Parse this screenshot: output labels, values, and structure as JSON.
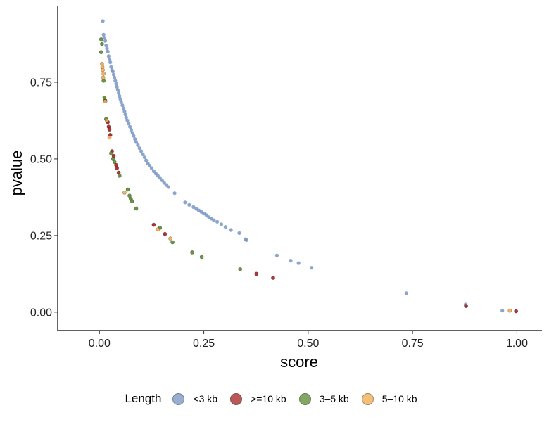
{
  "chart_data": {
    "type": "scatter",
    "title": "",
    "xlabel": "score",
    "ylabel": "pvalue",
    "xlim": [
      -0.1,
      1.06
    ],
    "ylim": [
      -0.06,
      1.0
    ],
    "x_ticks": [
      0,
      0.25,
      0.5,
      0.75,
      1.0
    ],
    "x_tick_labels": [
      "0.00",
      "0.25",
      "0.50",
      "0.75",
      "1.00"
    ],
    "y_ticks": [
      0,
      0.25,
      0.5,
      0.75
    ],
    "y_tick_labels": [
      "0.00",
      "0.25",
      "0.50",
      "0.75"
    ],
    "grid": false,
    "legend": {
      "title": "Length",
      "position": "bottom"
    },
    "series": [
      {
        "name": "<3 kb",
        "color": "#7895c4",
        "points": [
          [
            0.008,
            0.95
          ],
          [
            0.01,
            0.905
          ],
          [
            0.012,
            0.895
          ],
          [
            0.014,
            0.885
          ],
          [
            0.016,
            0.87
          ],
          [
            0.018,
            0.86
          ],
          [
            0.02,
            0.85
          ],
          [
            0.022,
            0.835
          ],
          [
            0.024,
            0.825
          ],
          [
            0.026,
            0.815
          ],
          [
            0.028,
            0.8
          ],
          [
            0.03,
            0.79
          ],
          [
            0.032,
            0.785
          ],
          [
            0.034,
            0.775
          ],
          [
            0.036,
            0.765
          ],
          [
            0.038,
            0.755
          ],
          [
            0.04,
            0.745
          ],
          [
            0.042,
            0.735
          ],
          [
            0.044,
            0.725
          ],
          [
            0.046,
            0.715
          ],
          [
            0.048,
            0.705
          ],
          [
            0.05,
            0.695
          ],
          [
            0.052,
            0.685
          ],
          [
            0.055,
            0.675
          ],
          [
            0.058,
            0.665
          ],
          [
            0.06,
            0.655
          ],
          [
            0.062,
            0.645
          ],
          [
            0.064,
            0.635
          ],
          [
            0.067,
            0.625
          ],
          [
            0.07,
            0.615
          ],
          [
            0.073,
            0.605
          ],
          [
            0.076,
            0.595
          ],
          [
            0.079,
            0.585
          ],
          [
            0.082,
            0.575
          ],
          [
            0.085,
            0.565
          ],
          [
            0.088,
            0.555
          ],
          [
            0.092,
            0.545
          ],
          [
            0.096,
            0.535
          ],
          [
            0.1,
            0.525
          ],
          [
            0.104,
            0.515
          ],
          [
            0.108,
            0.505
          ],
          [
            0.112,
            0.495
          ],
          [
            0.116,
            0.485
          ],
          [
            0.12,
            0.478
          ],
          [
            0.125,
            0.47
          ],
          [
            0.13,
            0.46
          ],
          [
            0.135,
            0.452
          ],
          [
            0.14,
            0.445
          ],
          [
            0.145,
            0.438
          ],
          [
            0.15,
            0.43
          ],
          [
            0.155,
            0.422
          ],
          [
            0.16,
            0.415
          ],
          [
            0.165,
            0.408
          ],
          [
            0.18,
            0.388
          ],
          [
            0.205,
            0.358
          ],
          [
            0.215,
            0.35
          ],
          [
            0.225,
            0.343
          ],
          [
            0.232,
            0.337
          ],
          [
            0.238,
            0.332
          ],
          [
            0.244,
            0.327
          ],
          [
            0.25,
            0.322
          ],
          [
            0.256,
            0.317
          ],
          [
            0.262,
            0.31
          ],
          [
            0.268,
            0.305
          ],
          [
            0.274,
            0.3
          ],
          [
            0.282,
            0.295
          ],
          [
            0.292,
            0.287
          ],
          [
            0.302,
            0.278
          ],
          [
            0.315,
            0.268
          ],
          [
            0.335,
            0.258
          ],
          [
            0.35,
            0.238
          ],
          [
            0.352,
            0.235
          ],
          [
            0.425,
            0.185
          ],
          [
            0.458,
            0.168
          ],
          [
            0.477,
            0.16
          ],
          [
            0.508,
            0.145
          ],
          [
            0.735,
            0.062
          ],
          [
            0.877,
            0.025
          ],
          [
            0.965,
            0.005
          ]
        ]
      },
      {
        "name": ">=10 kb",
        "color": "#a32020",
        "points": [
          [
            0.014,
            0.69
          ],
          [
            0.02,
            0.62
          ],
          [
            0.022,
            0.605
          ],
          [
            0.024,
            0.596
          ],
          [
            0.026,
            0.578
          ],
          [
            0.03,
            0.525
          ],
          [
            0.034,
            0.51
          ],
          [
            0.04,
            0.48
          ],
          [
            0.042,
            0.47
          ],
          [
            0.046,
            0.455
          ],
          [
            0.13,
            0.285
          ],
          [
            0.157,
            0.255
          ],
          [
            0.376,
            0.125
          ],
          [
            0.416,
            0.112
          ],
          [
            0.878,
            0.02
          ],
          [
            0.998,
            0.003
          ]
        ]
      },
      {
        "name": "3–5 kb",
        "color": "#5a8a2f",
        "points": [
          [
            0.004,
            0.89
          ],
          [
            0.006,
            0.875
          ],
          [
            0.004,
            0.848
          ],
          [
            0.01,
            0.755
          ],
          [
            0.012,
            0.7
          ],
          [
            0.016,
            0.63
          ],
          [
            0.028,
            0.518
          ],
          [
            0.032,
            0.5
          ],
          [
            0.036,
            0.49
          ],
          [
            0.048,
            0.445
          ],
          [
            0.068,
            0.4
          ],
          [
            0.072,
            0.38
          ],
          [
            0.075,
            0.37
          ],
          [
            0.078,
            0.362
          ],
          [
            0.088,
            0.338
          ],
          [
            0.145,
            0.275
          ],
          [
            0.175,
            0.228
          ],
          [
            0.222,
            0.195
          ],
          [
            0.245,
            0.18
          ],
          [
            0.337,
            0.14
          ]
        ]
      },
      {
        "name": "5–10 kb",
        "color": "#f0aa50",
        "points": [
          [
            0.006,
            0.81
          ],
          [
            0.007,
            0.8
          ],
          [
            0.008,
            0.79
          ],
          [
            0.01,
            0.778
          ],
          [
            0.009,
            0.765
          ],
          [
            0.014,
            0.688
          ],
          [
            0.018,
            0.625
          ],
          [
            0.024,
            0.57
          ],
          [
            0.06,
            0.39
          ],
          [
            0.14,
            0.27
          ],
          [
            0.17,
            0.24
          ],
          [
            0.983,
            0.005
          ]
        ]
      }
    ]
  }
}
